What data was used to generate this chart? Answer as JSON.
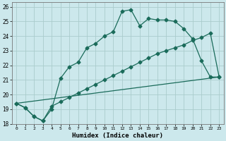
{
  "xlabel": "Humidex (Indice chaleur)",
  "bg_color": "#cce8ec",
  "grid_color": "#aacccc",
  "line_color": "#1a6b5a",
  "line1": {
    "x": [
      0,
      1,
      2,
      3,
      4,
      5,
      6,
      7,
      8,
      9,
      10,
      11,
      12,
      13,
      14,
      15,
      16,
      17,
      18,
      19,
      20,
      21,
      22,
      23
    ],
    "y": [
      19.4,
      19.1,
      18.5,
      18.2,
      19.0,
      21.1,
      21.9,
      22.2,
      23.2,
      23.5,
      24.0,
      24.3,
      25.7,
      25.8,
      24.7,
      25.2,
      25.1,
      25.1,
      25.0,
      24.5,
      23.8,
      22.3,
      21.2,
      21.2
    ]
  },
  "line2": {
    "x": [
      0,
      1,
      2,
      3,
      4,
      5,
      6,
      7,
      8,
      9,
      10,
      11,
      12,
      13,
      14,
      15,
      16,
      17,
      18,
      19,
      20,
      21,
      22,
      23
    ],
    "y": [
      19.4,
      19.1,
      18.5,
      18.2,
      19.2,
      19.5,
      19.8,
      20.1,
      20.4,
      20.7,
      21.0,
      21.3,
      21.6,
      21.9,
      22.2,
      22.5,
      22.8,
      23.0,
      23.2,
      23.4,
      23.7,
      23.9,
      24.2,
      21.2
    ]
  },
  "line3_x": [
    0,
    23
  ],
  "line3_y": [
    19.4,
    21.2
  ],
  "xlim": [
    -0.5,
    23.5
  ],
  "ylim": [
    18.0,
    26.3
  ],
  "xticks": [
    0,
    1,
    2,
    3,
    4,
    5,
    6,
    7,
    8,
    9,
    10,
    11,
    12,
    13,
    14,
    15,
    16,
    17,
    18,
    19,
    20,
    21,
    22,
    23
  ],
  "yticks": [
    18,
    19,
    20,
    21,
    22,
    23,
    24,
    25,
    26
  ],
  "xtick_labels": [
    "0",
    "1",
    "2",
    "3",
    "4",
    "5",
    "6",
    "7",
    "8",
    "9",
    "10",
    "11",
    "12",
    "13",
    "14",
    "15",
    "16",
    "17",
    "18",
    "19",
    "20",
    "21",
    "22",
    "23"
  ]
}
